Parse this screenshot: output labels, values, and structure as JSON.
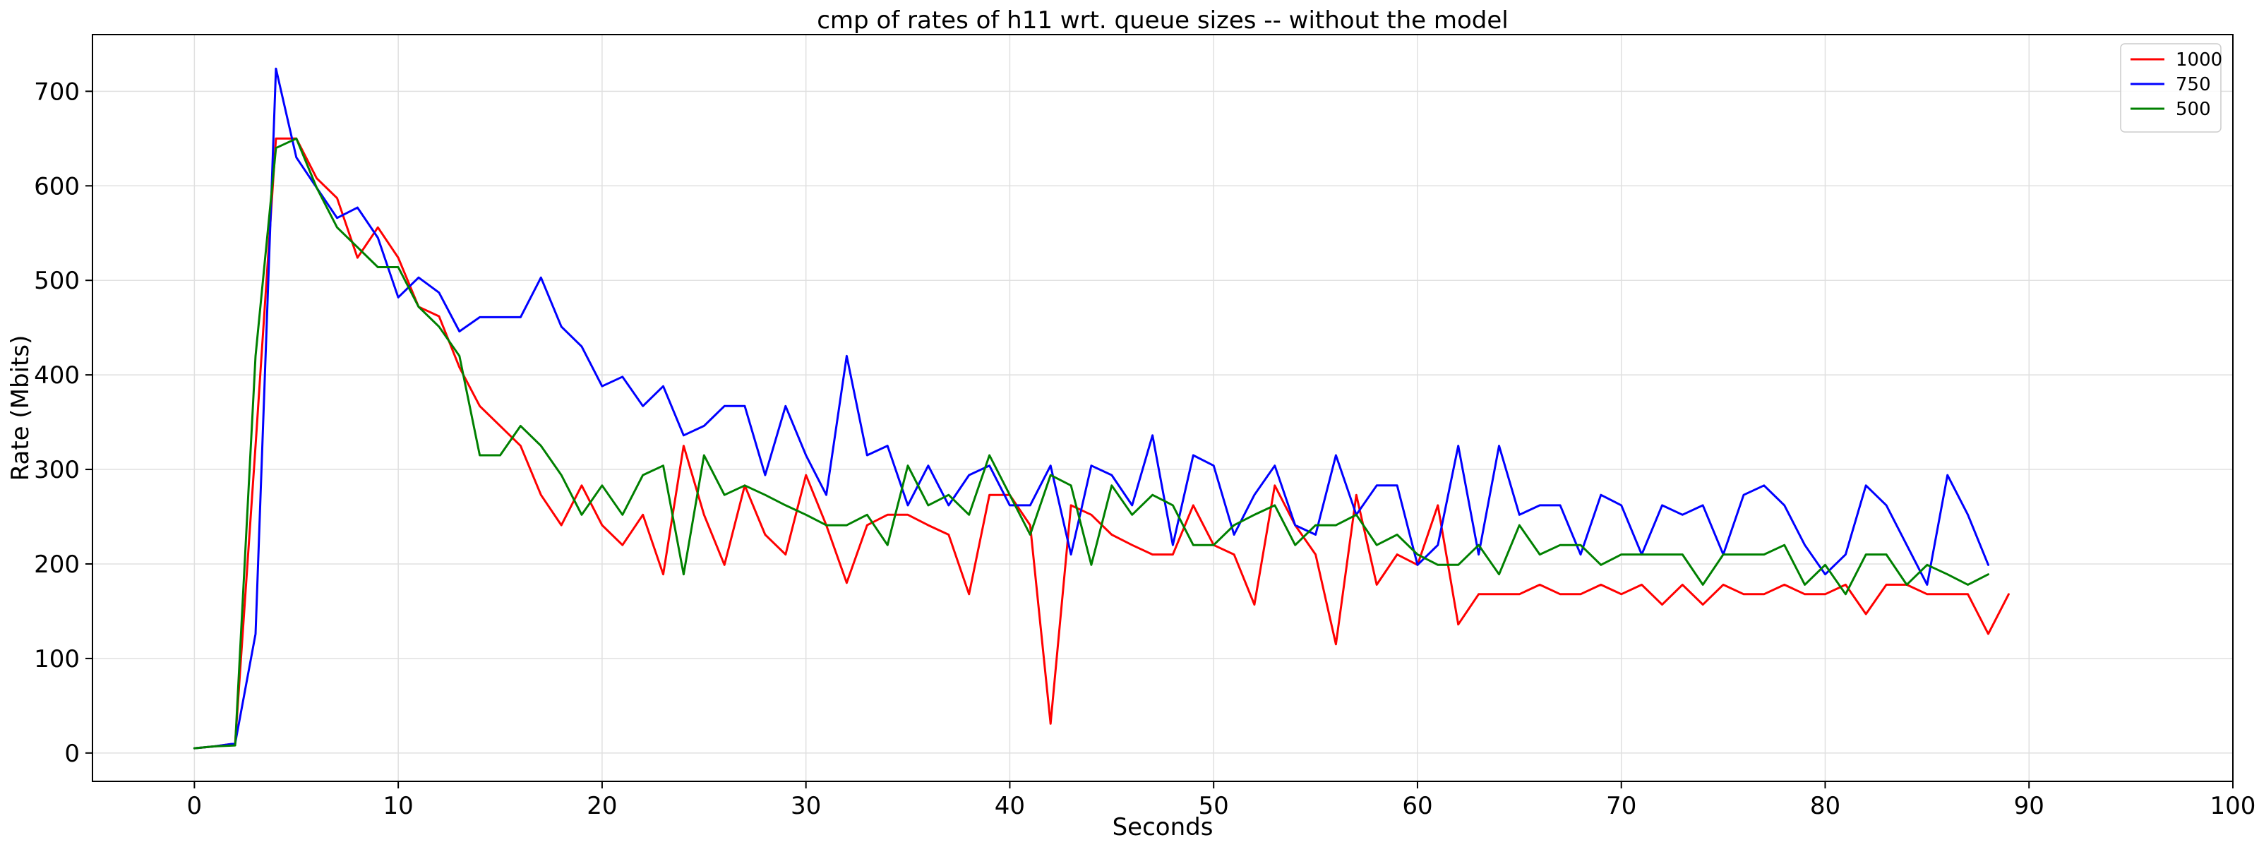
{
  "chart_data": {
    "type": "line",
    "title": "cmp of rates of h11 wrt. queue sizes -- without the model",
    "xlabel": "Seconds",
    "ylabel": "Rate (Mbits)",
    "xlim": [
      -5,
      100
    ],
    "ylim": [
      -30,
      760
    ],
    "xticks": [
      0,
      10,
      20,
      30,
      40,
      50,
      60,
      70,
      80,
      90,
      100
    ],
    "yticks": [
      0,
      100,
      200,
      300,
      400,
      500,
      600,
      700
    ],
    "grid": true,
    "legend_position": "top-right",
    "series": [
      {
        "name": "1000",
        "color": "#ff0000",
        "x": [
          0,
          1,
          2,
          3,
          4,
          5,
          6,
          7,
          8,
          9,
          10,
          11,
          12,
          13,
          14,
          15,
          16,
          17,
          18,
          19,
          20,
          21,
          22,
          23,
          24,
          25,
          26,
          27,
          28,
          29,
          30,
          31,
          32,
          33,
          34,
          35,
          36,
          37,
          38,
          39,
          40,
          41,
          42,
          43,
          44,
          45,
          46,
          47,
          48,
          49,
          50,
          51,
          52,
          53,
          54,
          55,
          56,
          57,
          58,
          59,
          60,
          61,
          62,
          63,
          64,
          65,
          66,
          67,
          68,
          69,
          70,
          71,
          72,
          73,
          74,
          75,
          76,
          77,
          78,
          79,
          80,
          81,
          82,
          83,
          84,
          85,
          86,
          87,
          88,
          89
        ],
        "values": [
          5,
          7,
          10,
          325,
          650,
          650,
          608,
          587,
          524,
          556,
          524,
          472,
          462,
          408,
          367,
          346,
          325,
          273,
          241,
          283,
          241,
          220,
          252,
          189,
          325,
          252,
          199,
          283,
          231,
          210,
          294,
          241,
          180,
          241,
          252,
          252,
          241,
          231,
          168,
          273,
          273,
          241,
          31,
          262,
          252,
          231,
          220,
          210,
          210,
          262,
          220,
          210,
          157,
          283,
          241,
          210,
          115,
          273,
          178,
          210,
          199,
          262,
          136,
          168,
          168,
          168,
          178,
          168,
          168,
          178,
          168,
          178,
          157,
          178,
          157,
          178,
          168,
          168,
          178,
          168,
          168,
          178,
          147,
          178,
          178,
          168,
          168,
          168,
          126,
          168
        ]
      },
      {
        "name": "750",
        "color": "#0000ff",
        "x": [
          0,
          1,
          2,
          3,
          4,
          5,
          6,
          7,
          8,
          9,
          10,
          11,
          12,
          13,
          14,
          15,
          16,
          17,
          18,
          19,
          20,
          21,
          22,
          23,
          24,
          25,
          26,
          27,
          28,
          29,
          30,
          31,
          32,
          33,
          34,
          35,
          36,
          37,
          38,
          39,
          40,
          41,
          42,
          43,
          44,
          45,
          46,
          47,
          48,
          49,
          50,
          51,
          52,
          53,
          54,
          55,
          56,
          57,
          58,
          59,
          60,
          61,
          62,
          63,
          64,
          65,
          66,
          67,
          68,
          69,
          70,
          71,
          72,
          73,
          74,
          75,
          76,
          77,
          78,
          79,
          80,
          81,
          82,
          83,
          84,
          85,
          86,
          87,
          88
        ],
        "values": [
          5,
          7,
          10,
          126,
          724,
          630,
          598,
          566,
          577,
          545,
          482,
          503,
          487,
          446,
          461,
          461,
          461,
          503,
          451,
          430,
          388,
          398,
          367,
          388,
          336,
          346,
          367,
          367,
          294,
          367,
          315,
          273,
          420,
          315,
          325,
          262,
          304,
          262,
          294,
          304,
          262,
          262,
          304,
          210,
          304,
          294,
          262,
          336,
          220,
          315,
          304,
          231,
          273,
          304,
          241,
          231,
          315,
          252,
          283,
          283,
          199,
          220,
          325,
          210,
          325,
          252,
          262,
          262,
          210,
          273,
          262,
          210,
          262,
          252,
          262,
          210,
          273,
          283,
          262,
          220,
          189,
          210,
          283,
          262,
          220,
          178,
          294,
          252,
          199
        ]
      },
      {
        "name": "500",
        "color": "#008000",
        "x": [
          0,
          1,
          2,
          3,
          4,
          5,
          6,
          7,
          8,
          9,
          10,
          11,
          12,
          13,
          14,
          15,
          16,
          17,
          18,
          19,
          20,
          21,
          22,
          23,
          24,
          25,
          26,
          27,
          28,
          29,
          30,
          31,
          32,
          33,
          34,
          35,
          36,
          37,
          38,
          39,
          40,
          41,
          42,
          43,
          44,
          45,
          46,
          47,
          48,
          49,
          50,
          51,
          52,
          53,
          54,
          55,
          56,
          57,
          58,
          59,
          60,
          61,
          62,
          63,
          64,
          65,
          66,
          67,
          68,
          69,
          70,
          71,
          72,
          73,
          74,
          75,
          76,
          77,
          78,
          79,
          80,
          81,
          82,
          83,
          84,
          85,
          86,
          87,
          88
        ],
        "values": [
          5,
          7,
          8,
          420,
          640,
          650,
          598,
          556,
          535,
          514,
          514,
          472,
          451,
          420,
          315,
          315,
          346,
          325,
          294,
          252,
          283,
          252,
          294,
          304,
          189,
          315,
          273,
          283,
          273,
          262,
          252,
          241,
          241,
          252,
          220,
          304,
          262,
          273,
          252,
          315,
          273,
          231,
          294,
          283,
          199,
          283,
          252,
          273,
          262,
          220,
          220,
          241,
          252,
          262,
          220,
          241,
          241,
          252,
          220,
          231,
          210,
          199,
          199,
          220,
          189,
          241,
          210,
          220,
          220,
          199,
          210,
          210,
          210,
          210,
          178,
          210,
          210,
          210,
          220,
          178,
          199,
          168,
          210,
          210,
          178,
          199,
          189,
          178,
          189
        ]
      }
    ]
  }
}
